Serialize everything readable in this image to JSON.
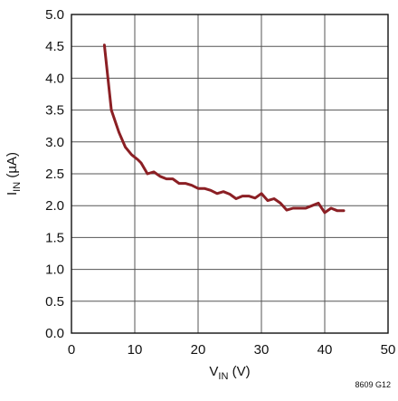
{
  "chart_data": {
    "type": "line",
    "title": "",
    "xlabel": "V_IN (V)",
    "xlabel_main": "V",
    "xlabel_sub": "IN",
    "xlabel_unit": " (V)",
    "ylabel": "I_IN (µA)",
    "ylabel_main": "I",
    "ylabel_sub": "IN",
    "ylabel_unit": " (µA)",
    "xlim": [
      0,
      50
    ],
    "ylim": [
      0,
      5
    ],
    "x_ticks": [
      "0",
      "10",
      "20",
      "30",
      "40",
      "50"
    ],
    "y_ticks": [
      "0.0",
      "0.5",
      "1.0",
      "1.5",
      "2.0",
      "2.5",
      "3.0",
      "3.5",
      "4.0",
      "4.5",
      "5.0"
    ],
    "grid": true,
    "figure_id": "8609 G12",
    "line_color": "#8b1f24",
    "series": [
      {
        "name": "",
        "x": [
          5.2,
          6.3,
          7.5,
          8.5,
          9.5,
          10.5,
          11,
          12,
          13,
          14,
          15,
          16,
          17,
          18,
          19,
          20,
          21,
          22,
          23,
          24,
          25,
          26,
          27,
          28,
          29,
          30,
          31,
          32,
          33,
          34,
          35,
          36,
          37,
          38,
          39,
          40,
          41,
          42,
          43
        ],
        "y": [
          4.52,
          3.5,
          3.15,
          2.92,
          2.8,
          2.72,
          2.67,
          2.5,
          2.53,
          2.46,
          2.42,
          2.42,
          2.35,
          2.35,
          2.32,
          2.27,
          2.27,
          2.24,
          2.19,
          2.22,
          2.18,
          2.11,
          2.15,
          2.15,
          2.12,
          2.19,
          2.08,
          2.11,
          2.04,
          1.93,
          1.96,
          1.96,
          1.96,
          2.0,
          2.04,
          1.89,
          1.96,
          1.92,
          1.92
        ]
      }
    ]
  }
}
